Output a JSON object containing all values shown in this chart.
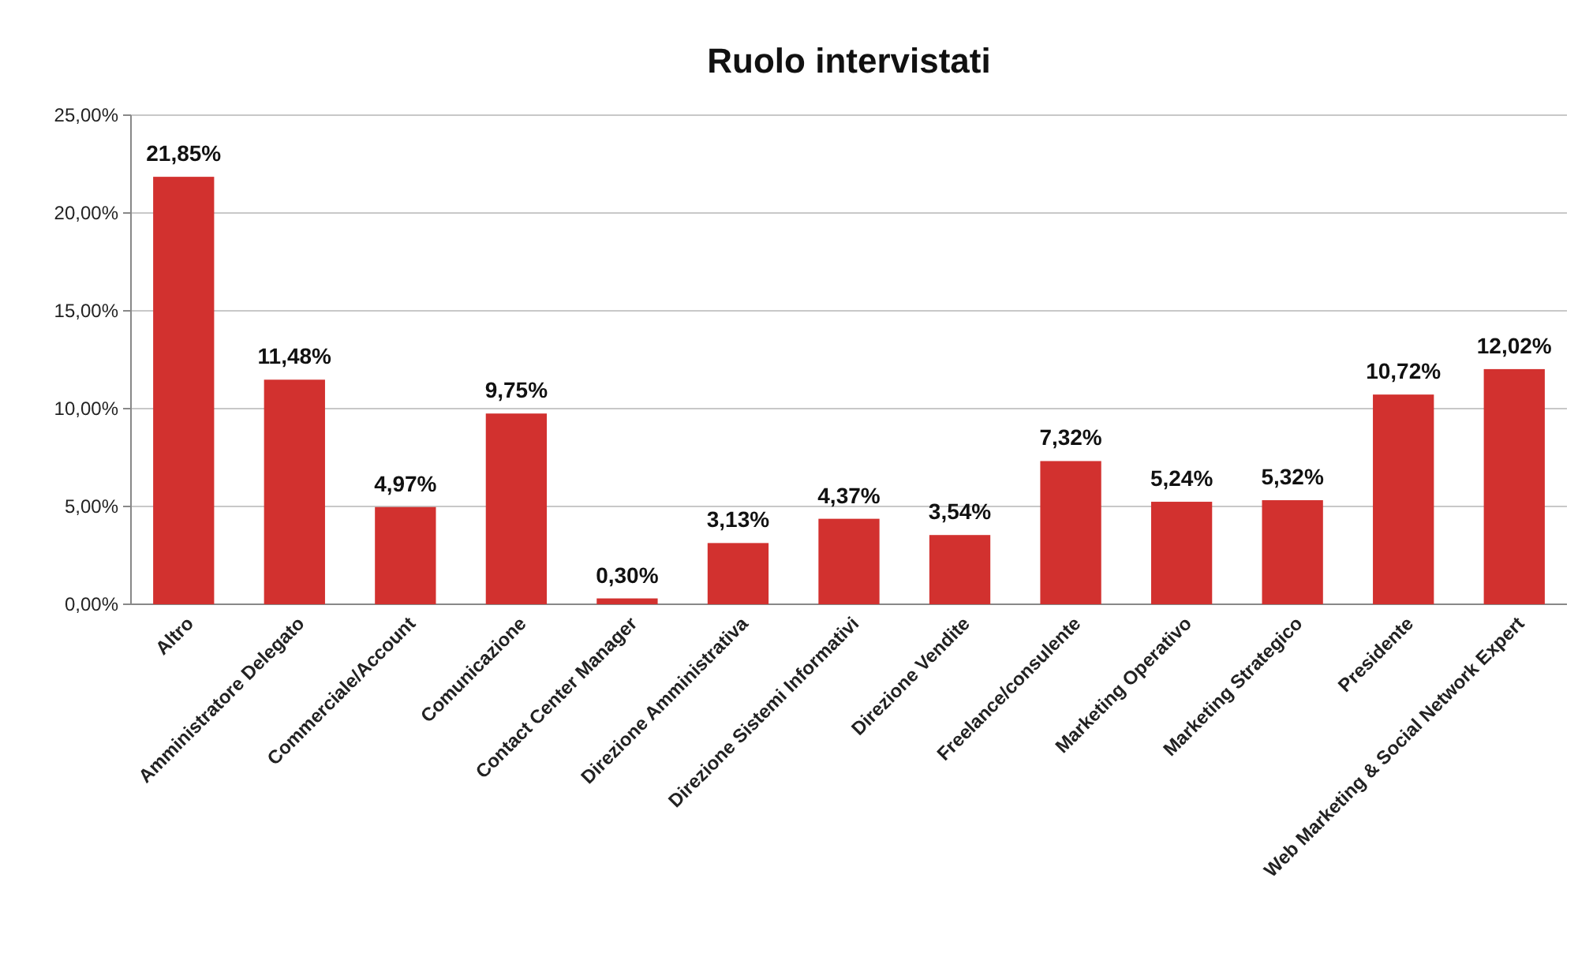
{
  "chart_data": {
    "type": "bar",
    "title": "Ruolo intervistati",
    "categories": [
      "Altro",
      "Amministratore Delegato",
      "Commerciale/Account",
      "Comunicazione",
      "Contact Center Manager",
      "Direzione Amministrativa",
      "Direzione Sistemi Informativi",
      "Direzione Vendite",
      "Freelance/consulente",
      "Marketing Operativo",
      "Marketing Strategico",
      "Presidente",
      "Web Marketing & Social Network Expert"
    ],
    "values": [
      21.85,
      11.48,
      4.97,
      9.75,
      0.3,
      3.13,
      4.37,
      3.54,
      7.32,
      5.24,
      5.32,
      10.72,
      12.02
    ],
    "value_labels": [
      "21,85%",
      "11,48%",
      "4,97%",
      "9,75%",
      "0,30%",
      "3,13%",
      "4,37%",
      "3,54%",
      "7,32%",
      "5,24%",
      "5,32%",
      "10,72%",
      "12,02%"
    ],
    "color": "#d2312f",
    "ylim": [
      0,
      25
    ],
    "yticks": [
      {
        "value": 0,
        "label": "0,00%"
      },
      {
        "value": 5,
        "label": "5,00%"
      },
      {
        "value": 10,
        "label": "10,00%"
      },
      {
        "value": 15,
        "label": "15,00%"
      },
      {
        "value": 20,
        "label": "20,00%"
      },
      {
        "value": 25,
        "label": "25,00%"
      }
    ],
    "grid": "y"
  }
}
